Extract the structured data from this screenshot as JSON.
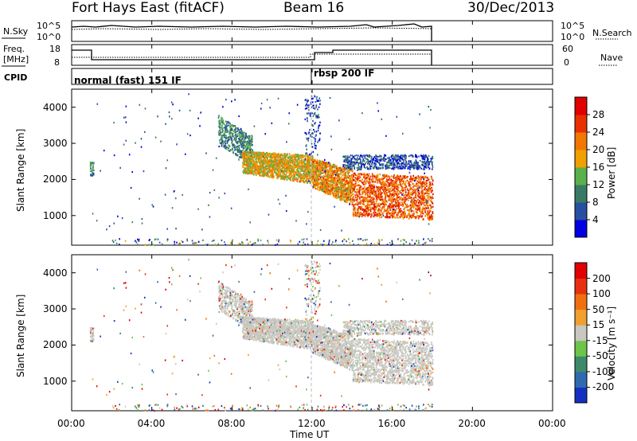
{
  "header": {
    "station": "Fort Hays East (fitACF)",
    "beam": "Beam 16",
    "date": "30/Dec/2013"
  },
  "top_panels": {
    "nsky_label": "N.Sky",
    "nsky_ticks": [
      "10^5",
      "10^0"
    ],
    "nsearch_label": "N.Search",
    "nsearch_ticks": [
      "10^5",
      "10^0"
    ],
    "freq_label": "Freq.",
    "freq_unit": "[MHz]",
    "freq_ticks": [
      "18",
      "8"
    ],
    "nave_label": "Nave",
    "nave_ticks": [
      "60",
      "0"
    ],
    "cpid_label": "CPID",
    "cpid_segments": [
      {
        "label": "normal (fast) 151 IF",
        "start_hour": 0
      },
      {
        "label": "rbsp 200 IF",
        "start_hour": 12
      }
    ]
  },
  "chart_data": [
    {
      "type": "heatmap",
      "name": "power",
      "ylabel": "Slant Range [km]",
      "yticks": [
        1000,
        2000,
        3000,
        4000
      ],
      "ylim": [
        180,
        4500
      ],
      "xlim": [
        0,
        24
      ],
      "colorbar_label": "Power [dB]",
      "colorbar_ticks": [
        "28",
        "24",
        "20",
        "16",
        "12",
        "8",
        "4"
      ],
      "colorbar_colors": [
        "#0000e0",
        "#2850a0",
        "#3a7a64",
        "#5ab04a",
        "#f0a000",
        "#f07800",
        "#e83000",
        "#e00000"
      ]
    },
    {
      "type": "heatmap",
      "name": "velocity",
      "ylabel": "Slant Range [km]",
      "yticks": [
        1000,
        2000,
        3000,
        4000
      ],
      "ylim": [
        180,
        4500
      ],
      "xlim": [
        0,
        24
      ],
      "colorbar_label": "Velocity [m s⁻¹]",
      "colorbar_ticks": [
        "200",
        "100",
        "50",
        "15",
        "-15",
        "-50",
        "-100",
        "-200"
      ],
      "colorbar_colors": [
        "#1530c0",
        "#2f6ab0",
        "#3c8a6a",
        "#6cc44a",
        "#c8c8c0",
        "#f0a030",
        "#f07010",
        "#e83010",
        "#e00000"
      ]
    }
  ],
  "xaxis": {
    "ticks": [
      "00:00",
      "04:00",
      "08:00",
      "12:00",
      "16:00",
      "20:00",
      "00:00"
    ],
    "label": "Time UT"
  }
}
